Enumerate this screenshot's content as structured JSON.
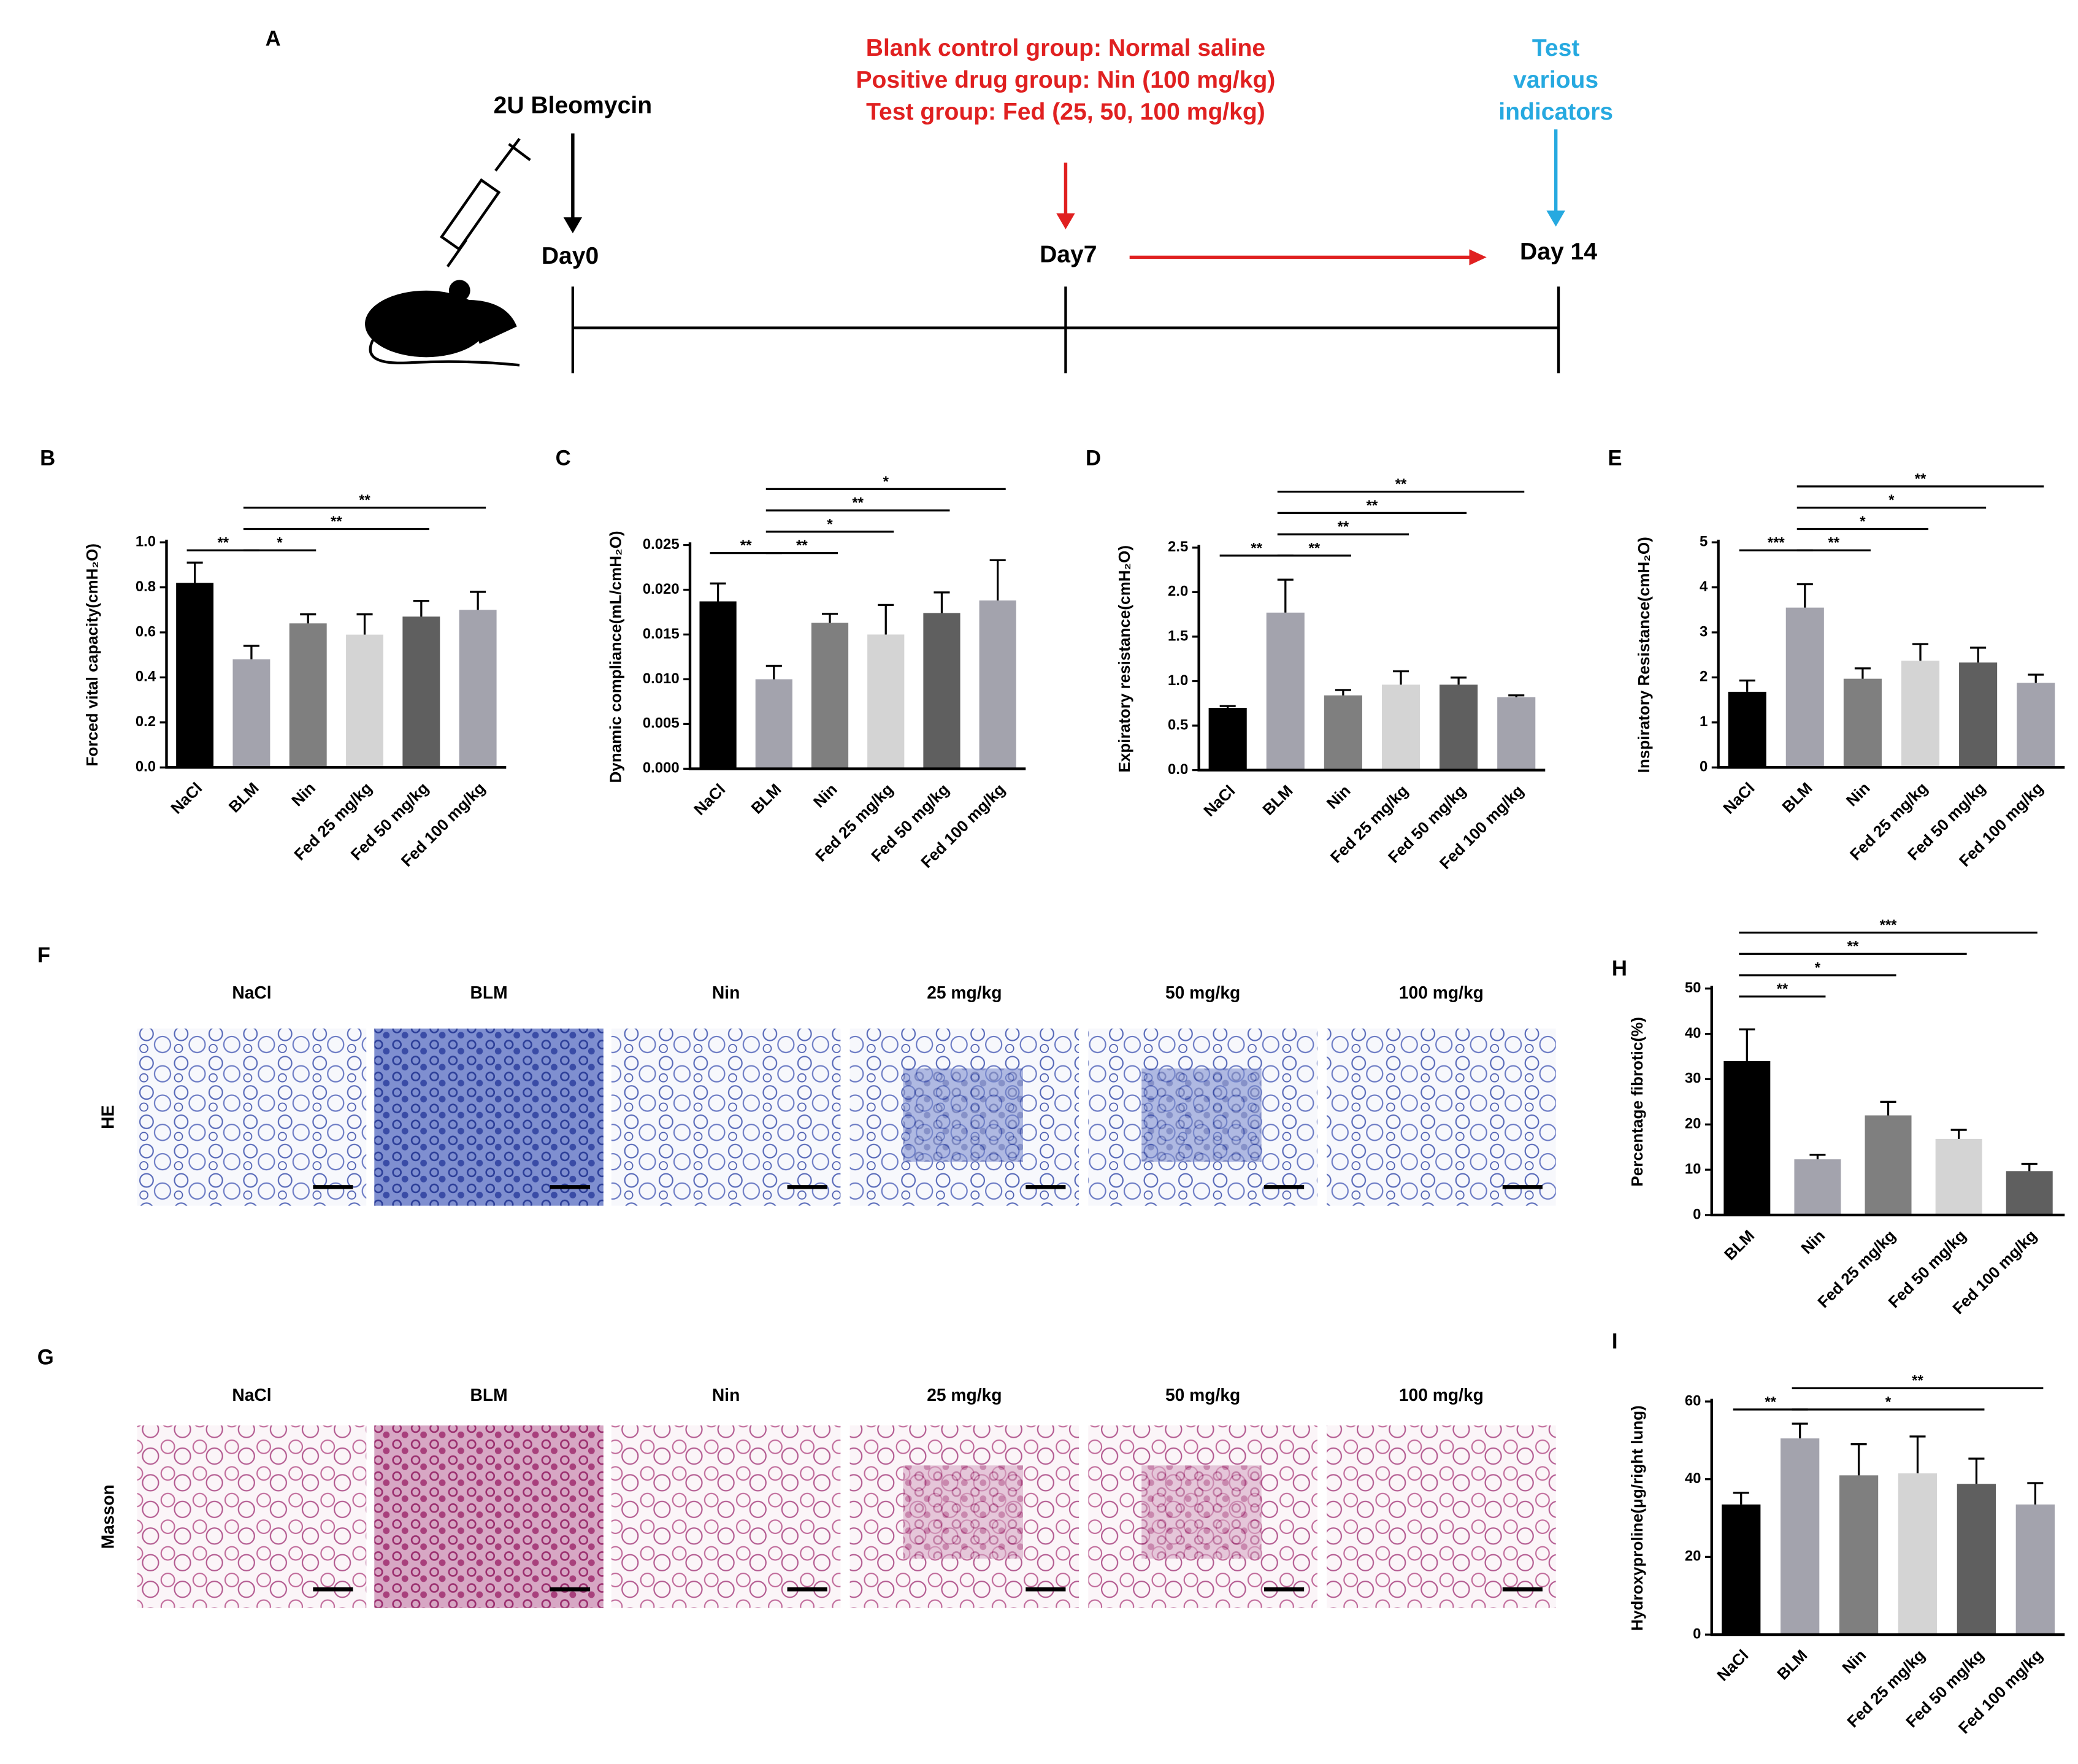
{
  "timeline": {
    "panel": "A",
    "bleomycin": "2U Bleomycin",
    "day0": "Day0",
    "day7": "Day7",
    "day14": "Day 14",
    "treatment": [
      "Blank control group:  Normal saline",
      "Positive drug group: Nin (100 mg/kg)",
      "Test group: Fed (25, 50, 100 mg/kg)"
    ],
    "test": [
      "Test",
      "various",
      "indicators"
    ]
  },
  "histology": [
    {
      "panel": "F",
      "row_label": "HE",
      "columns": [
        "NaCl",
        "BLM",
        "Nin",
        "25 mg/kg",
        "50 mg/kg",
        "100 mg/kg"
      ]
    },
    {
      "panel": "G",
      "row_label": "Masson",
      "columns": [
        "NaCl",
        "BLM",
        "Nin",
        "25 mg/kg",
        "50 mg/kg",
        "100 mg/kg"
      ]
    }
  ],
  "chart_data": [
    {
      "type": "bar",
      "panel": "B",
      "y_label": "Forced vital capacity(cmH₂O)",
      "categories": [
        "NaCl",
        "BLM",
        "Nin",
        "Fed 25 mg/kg",
        "Fed 50 mg/kg",
        "Fed 100 mg/kg"
      ],
      "values": [
        0.82,
        0.48,
        0.64,
        0.59,
        0.67,
        0.7
      ],
      "errors": [
        0.09,
        0.06,
        0.04,
        0.09,
        0.07,
        0.08
      ],
      "colors": [
        "#000000",
        "#a3a3ad",
        "#7f7f7f",
        "#d4d4d4",
        "#5f5f5f",
        "#a3a3ad"
      ],
      "ylim": [
        0,
        1
      ],
      "yticks": [
        {
          "value": 0,
          "label": "0.0"
        },
        {
          "value": 0.2,
          "label": "0.2"
        },
        {
          "value": 0.4,
          "label": "0.4"
        },
        {
          "value": 0.6,
          "label": "0.6"
        },
        {
          "value": 0.8,
          "label": "0.8"
        },
        {
          "value": 1,
          "label": "1.0"
        }
      ],
      "significance": [
        {
          "groups": [
            "NaCl",
            "BLM"
          ],
          "label": "**"
        },
        {
          "groups": [
            "BLM",
            "Nin"
          ],
          "label": "*"
        },
        {
          "groups": [
            "BLM",
            "Fed 50 mg/kg"
          ],
          "label": "**"
        },
        {
          "groups": [
            "BLM",
            "Fed 100 mg/kg"
          ],
          "label": "**"
        }
      ]
    },
    {
      "type": "bar",
      "panel": "C",
      "y_label": "Dynamic compliance(mL/cmH₂O)",
      "categories": [
        "NaCl",
        "BLM",
        "Nin",
        "Fed 25 mg/kg",
        "Fed 50 mg/kg",
        "Fed 100 mg/kg"
      ],
      "values": [
        0.0187,
        0.01,
        0.0163,
        0.015,
        0.0174,
        0.0188
      ],
      "errors": [
        0.002,
        0.0015,
        0.001,
        0.0033,
        0.0023,
        0.0045
      ],
      "colors": [
        "#000000",
        "#a3a3ad",
        "#7f7f7f",
        "#d4d4d4",
        "#5f5f5f",
        "#a3a3ad"
      ],
      "ylim": [
        0,
        0.025
      ],
      "yticks": [
        {
          "value": 0,
          "label": "0.000"
        },
        {
          "value": 0.005,
          "label": "0.005"
        },
        {
          "value": 0.01,
          "label": "0.010"
        },
        {
          "value": 0.015,
          "label": "0.015"
        },
        {
          "value": 0.02,
          "label": "0.020"
        },
        {
          "value": 0.025,
          "label": "0.025"
        }
      ],
      "significance": [
        {
          "groups": [
            "NaCl",
            "BLM"
          ],
          "label": "**"
        },
        {
          "groups": [
            "BLM",
            "Nin"
          ],
          "label": "**"
        },
        {
          "groups": [
            "BLM",
            "Fed 25 mg/kg"
          ],
          "label": "*"
        },
        {
          "groups": [
            "BLM",
            "Fed 50 mg/kg"
          ],
          "label": "**"
        },
        {
          "groups": [
            "BLM",
            "Fed 100 mg/kg"
          ],
          "label": "*"
        }
      ]
    },
    {
      "type": "bar",
      "panel": "D",
      "y_label": "Expiratory resistance(cmH₂O)",
      "categories": [
        "NaCl",
        "BLM",
        "Nin",
        "Fed 25 mg/kg",
        "Fed 50 mg/kg",
        "Fed 100 mg/kg"
      ],
      "values": [
        0.7,
        1.77,
        0.84,
        0.96,
        0.96,
        0.82
      ],
      "errors": [
        0.02,
        0.37,
        0.06,
        0.15,
        0.08,
        0.02
      ],
      "colors": [
        "#000000",
        "#a3a3ad",
        "#7f7f7f",
        "#d4d4d4",
        "#5f5f5f",
        "#a3a3ad"
      ],
      "ylim": [
        0,
        2.5
      ],
      "yticks": [
        {
          "value": 0,
          "label": "0.0"
        },
        0.5,
        {
          "value": 1,
          "label": "1.0"
        },
        1.5,
        {
          "value": 2,
          "label": "2.0"
        },
        2.5
      ],
      "significance": [
        {
          "groups": [
            "NaCl",
            "BLM"
          ],
          "label": "**"
        },
        {
          "groups": [
            "BLM",
            "Nin"
          ],
          "label": "**"
        },
        {
          "groups": [
            "BLM",
            "Fed 25 mg/kg"
          ],
          "label": "**"
        },
        {
          "groups": [
            "BLM",
            "Fed 50 mg/kg"
          ],
          "label": "**"
        },
        {
          "groups": [
            "BLM",
            "Fed 100 mg/kg"
          ],
          "label": "**"
        }
      ]
    },
    {
      "type": "bar",
      "panel": "E",
      "y_label": "Inspiratory Resistance(cmH₂O)",
      "categories": [
        "NaCl",
        "BLM",
        "Nin",
        "Fed 25 mg/kg",
        "Fed 50 mg/kg",
        "Fed 100 mg/kg"
      ],
      "values": [
        1.68,
        3.55,
        1.97,
        2.37,
        2.33,
        1.88
      ],
      "errors": [
        0.25,
        0.52,
        0.23,
        0.37,
        0.33,
        0.18
      ],
      "colors": [
        "#000000",
        "#a3a3ad",
        "#7f7f7f",
        "#d4d4d4",
        "#5f5f5f",
        "#a3a3ad"
      ],
      "ylim": [
        0,
        5
      ],
      "yticks": [
        0,
        1,
        2,
        3,
        4,
        5
      ],
      "significance": [
        {
          "groups": [
            "NaCl",
            "BLM"
          ],
          "label": "***"
        },
        {
          "groups": [
            "BLM",
            "Nin"
          ],
          "label": "**"
        },
        {
          "groups": [
            "BLM",
            "Fed 25 mg/kg"
          ],
          "label": "*"
        },
        {
          "groups": [
            "BLM",
            "Fed 50 mg/kg"
          ],
          "label": "*"
        },
        {
          "groups": [
            "BLM",
            "Fed 100 mg/kg"
          ],
          "label": "**"
        }
      ]
    },
    {
      "type": "bar",
      "panel": "H",
      "y_label": "Percentage fibrotic(%)",
      "categories": [
        "BLM",
        "Nin",
        "Fed 25 mg/kg",
        "Fed 50 mg/kg",
        "Fed 100 mg/kg"
      ],
      "values": [
        34,
        12.3,
        22,
        16.8,
        9.7
      ],
      "errors": [
        7,
        1,
        3,
        2,
        1.6
      ],
      "colors": [
        "#000000",
        "#a3a3ad",
        "#7f7f7f",
        "#d4d4d4",
        "#5f5f5f"
      ],
      "ylim": [
        0,
        50
      ],
      "yticks": [
        0,
        10,
        20,
        30,
        40,
        50
      ],
      "significance": [
        {
          "groups": [
            "BLM",
            "Nin"
          ],
          "label": "**"
        },
        {
          "groups": [
            "BLM",
            "Fed 25 mg/kg"
          ],
          "label": "*"
        },
        {
          "groups": [
            "BLM",
            "Fed 50 mg/kg"
          ],
          "label": "**"
        },
        {
          "groups": [
            "BLM",
            "Fed 100 mg/kg"
          ],
          "label": "***"
        }
      ]
    },
    {
      "type": "bar",
      "panel": "I",
      "y_label": "Hydroxyproline(μg/right lung)",
      "categories": [
        "NaCl",
        "BLM",
        "Nin",
        "Fed 25 mg/kg",
        "Fed 50 mg/kg",
        "Fed 100 mg/kg"
      ],
      "values": [
        33.5,
        50.5,
        41,
        41.5,
        38.8,
        33.5
      ],
      "errors": [
        3,
        3.8,
        8,
        9.5,
        6.5,
        5.5
      ],
      "colors": [
        "#000000",
        "#a3a3ad",
        "#7f7f7f",
        "#d4d4d4",
        "#5f5f5f",
        "#a3a3ad"
      ],
      "ylim": [
        0,
        60
      ],
      "yticks": [
        0,
        20,
        40,
        60
      ],
      "significance": [
        {
          "groups": [
            "NaCl",
            "BLM"
          ],
          "label": "**"
        },
        {
          "groups": [
            "BLM",
            "Fed 50 mg/kg"
          ],
          "label": "*"
        },
        {
          "groups": [
            "BLM",
            "Fed 100 mg/kg"
          ],
          "label": "**"
        }
      ]
    }
  ]
}
